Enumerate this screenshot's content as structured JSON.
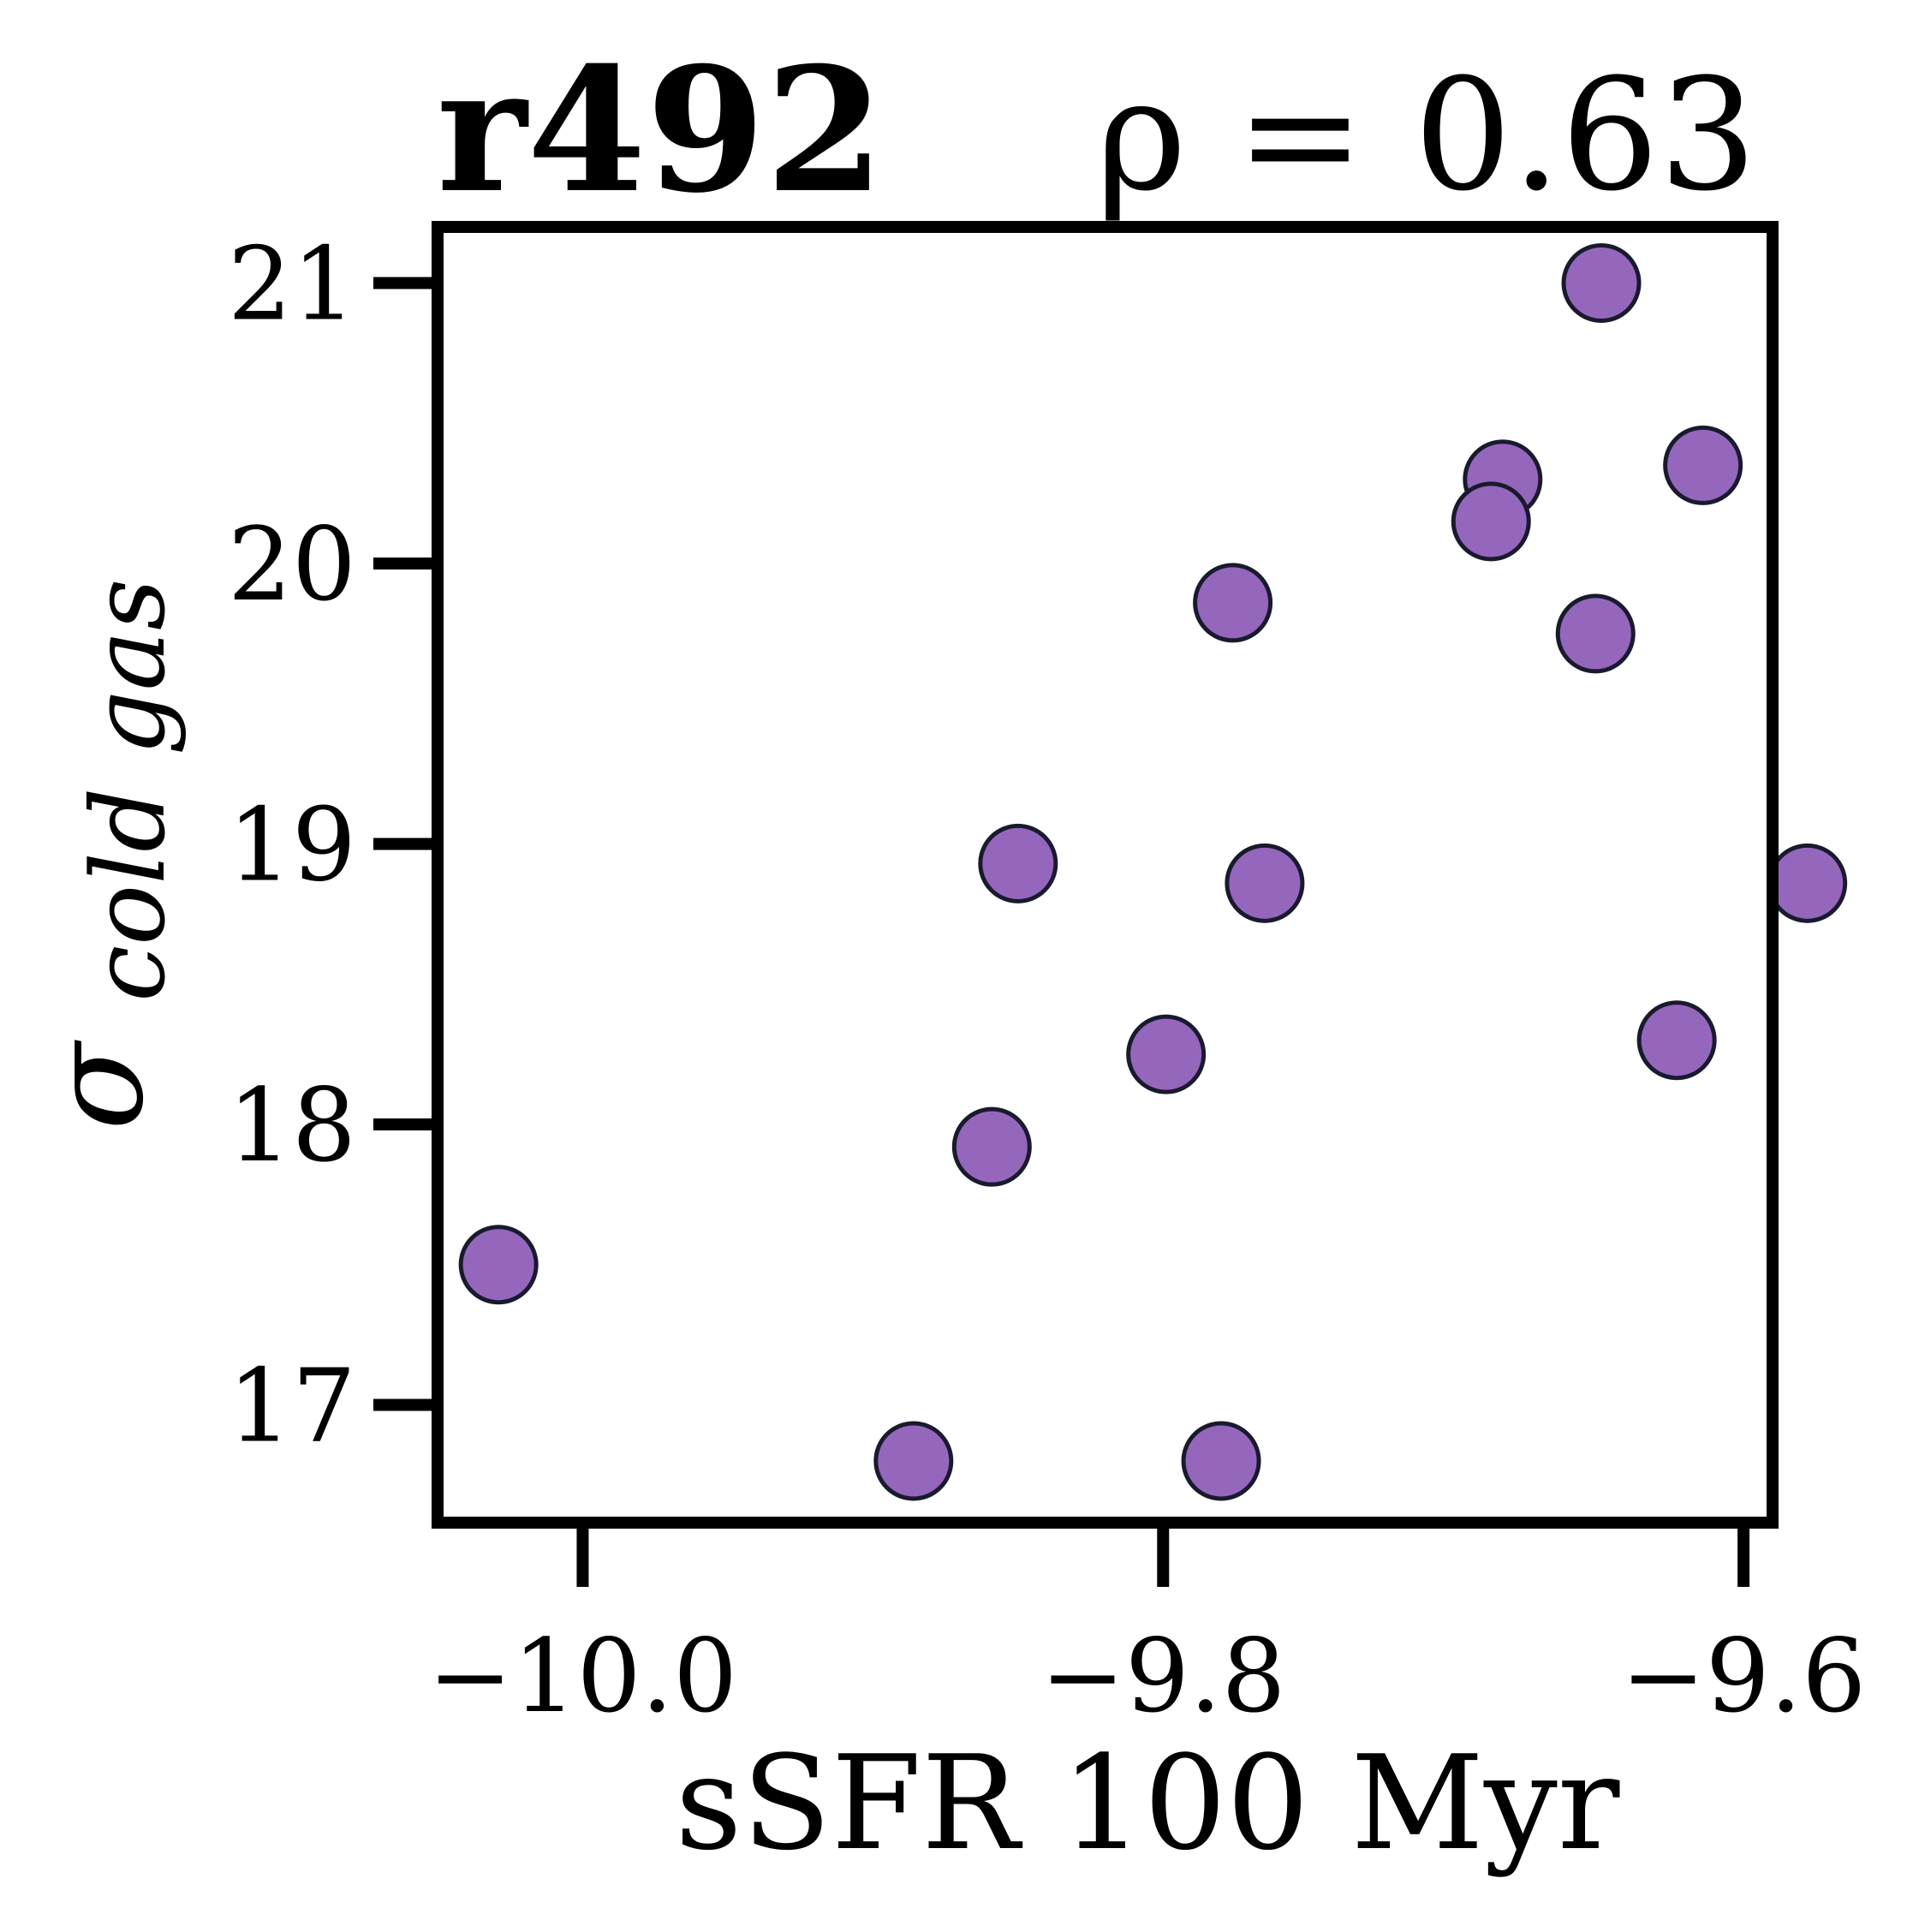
{
  "chart_data": {
    "type": "scatter",
    "title": "r492",
    "annotation": "ρ = 0.63",
    "xlabel": "sSFR 100 Myr",
    "ylabel_symbol": "σ",
    "ylabel_subscript": "cold gas",
    "xlim": [
      -10.05,
      -9.59
    ],
    "ylim": [
      16.58,
      21.2
    ],
    "xticks": [
      {
        "value": -10.0,
        "label": "−10.0"
      },
      {
        "value": -9.8,
        "label": "−9.8"
      },
      {
        "value": -9.6,
        "label": "−9.6"
      }
    ],
    "yticks": [
      {
        "value": 17,
        "label": "17"
      },
      {
        "value": 18,
        "label": "18"
      },
      {
        "value": 19,
        "label": "19"
      },
      {
        "value": 20,
        "label": "20"
      },
      {
        "value": 21,
        "label": "21"
      }
    ],
    "grid": false,
    "marker_color": "#9467bd",
    "marker_edge": "#1a1a2e",
    "points": [
      {
        "x": -10.029,
        "y": 17.5
      },
      {
        "x": -9.886,
        "y": 16.8
      },
      {
        "x": -9.78,
        "y": 16.8
      },
      {
        "x": -9.859,
        "y": 17.92
      },
      {
        "x": -9.799,
        "y": 18.25
      },
      {
        "x": -9.85,
        "y": 18.93
      },
      {
        "x": -9.765,
        "y": 18.86
      },
      {
        "x": -9.776,
        "y": 19.86
      },
      {
        "x": -9.683,
        "y": 20.3
      },
      {
        "x": -9.687,
        "y": 20.15
      },
      {
        "x": -9.651,
        "y": 19.75
      },
      {
        "x": -9.649,
        "y": 21.0
      },
      {
        "x": -9.614,
        "y": 20.35
      },
      {
        "x": -9.623,
        "y": 18.3
      },
      {
        "x": -9.578,
        "y": 18.86
      }
    ]
  }
}
